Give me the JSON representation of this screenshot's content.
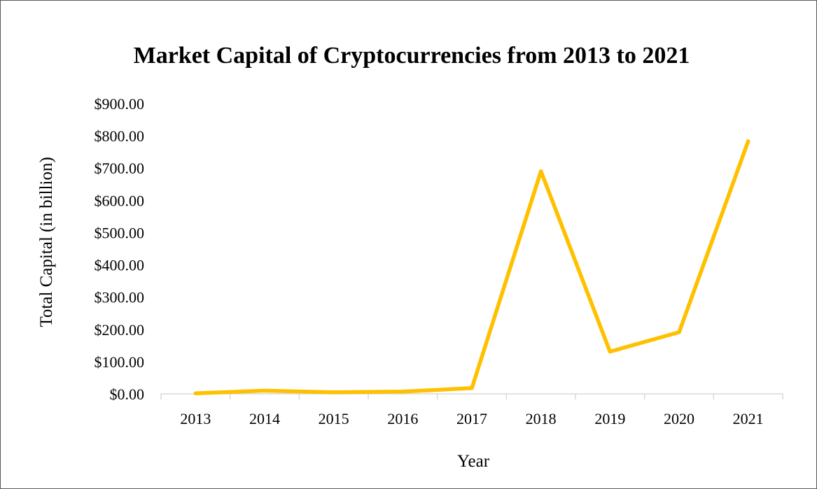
{
  "chart_data": {
    "type": "line",
    "title": "Market Capital of Cryptocurrencies from 2013 to 2021",
    "xlabel": "Year",
    "ylabel": "Total Capital (in billion)",
    "categories": [
      "2013",
      "2014",
      "2015",
      "2016",
      "2017",
      "2018",
      "2019",
      "2020",
      "2021"
    ],
    "series": [
      {
        "values": [
          1.6,
          10,
          5,
          7,
          17.7,
          690,
          131,
          191,
          783
        ],
        "color": "#FFC000"
      }
    ],
    "y_ticks": [
      "$0.00",
      "$100.00",
      "$200.00",
      "$300.00",
      "$400.00",
      "$500.00",
      "$600.00",
      "$700.00",
      "$800.00",
      "$900.00"
    ],
    "ylim": [
      0,
      900
    ],
    "y_step": 100,
    "grid": false,
    "legend": "none"
  }
}
